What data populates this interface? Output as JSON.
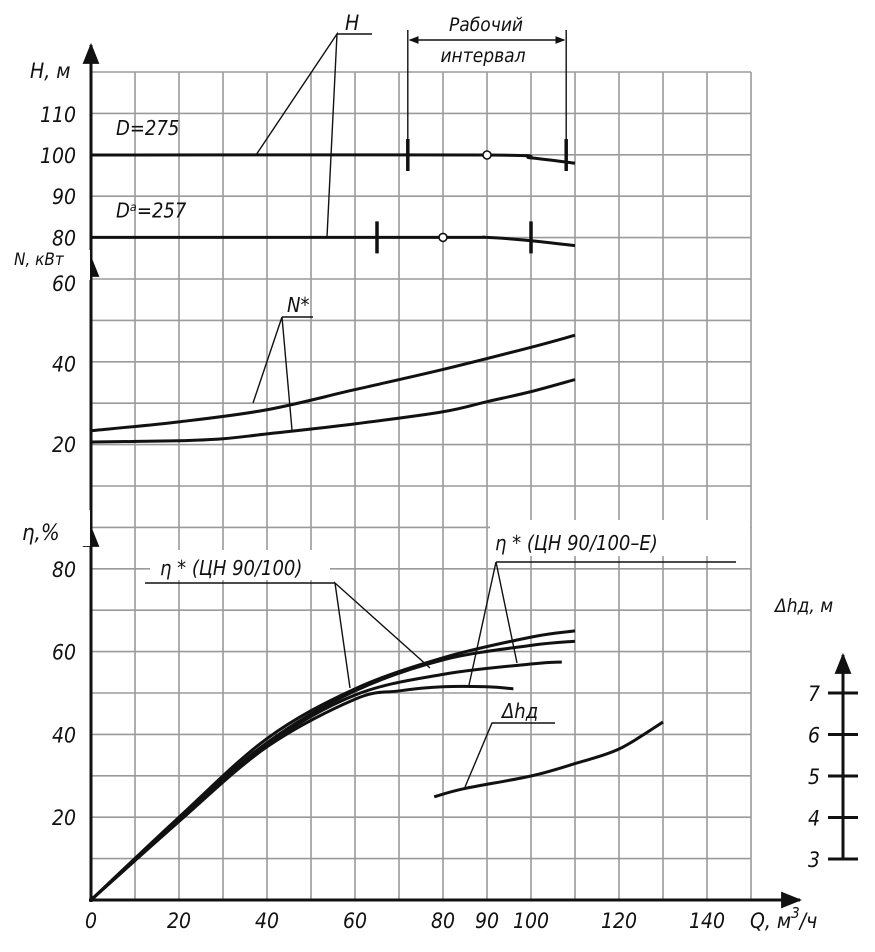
{
  "chart_data": {
    "type": "line",
    "x_axis": {
      "label": "Q, м³/ч",
      "label_main": "Q, м",
      "label_sup": "3",
      "label_tail": "/ч",
      "ticks": [
        0,
        20,
        40,
        60,
        80,
        90,
        100,
        120,
        140
      ],
      "range": [
        0,
        150
      ],
      "grid_step": 10
    },
    "grid": true,
    "panels": [
      {
        "name": "head",
        "ylabel": "H, м",
        "ticks": [
          80,
          90,
          100,
          110
        ],
        "series": [
          {
            "name": "D=275",
            "label": "D=275",
            "x": [
              0,
              90,
              100,
              110
            ],
            "y": [
              100,
              100,
              99.3,
              98
            ],
            "operating_point": 90,
            "working_interval": [
              72,
              108
            ]
          },
          {
            "name": "Dᵃ=257",
            "label": "Dᵃ=257",
            "x": [
              0,
              80,
              90,
              100,
              110
            ],
            "y": [
              80,
              80,
              80,
              79.2,
              78
            ],
            "operating_point": 80,
            "working_interval": [
              65,
              100
            ]
          }
        ],
        "leader_label": "H",
        "working_interval_label": [
          "Рабочий",
          "интервал"
        ]
      },
      {
        "name": "power",
        "ylabel": "N, кВт",
        "ticks": [
          20,
          40,
          60
        ],
        "leader_label": "N*",
        "series": [
          {
            "x": [
              0,
              20,
              40,
              60,
              80,
              100,
              110
            ],
            "y": [
              23.3,
              25.5,
              28.5,
              33.5,
              38.5,
              44,
              47
            ]
          },
          {
            "x": [
              0,
              20,
              30,
              40,
              60,
              80,
              90,
              100,
              110
            ],
            "y": [
              20.5,
              20.8,
              21.3,
              22.5,
              25,
              28,
              30.5,
              33,
              36
            ]
          }
        ]
      },
      {
        "name": "efficiency",
        "ylabel": "η,%",
        "ticks": [
          20,
          40,
          60,
          80
        ],
        "labels": [
          "η * (ЦН 90/100)",
          "η * (ЦН 90/100–Е)"
        ],
        "series": [
          {
            "x": [
              0,
              20,
              40,
              60,
              80,
              100,
              110
            ],
            "y": [
              0,
              20,
              39,
              51,
              58.5,
              63.5,
              65
            ]
          },
          {
            "x": [
              0,
              20,
              40,
              60,
              80,
              100,
              110
            ],
            "y": [
              0,
              19.5,
              38,
              50.5,
              58,
              61.5,
              62.5
            ]
          },
          {
            "x": [
              0,
              20,
              40,
              60,
              80,
              100,
              107
            ],
            "y": [
              0,
              19,
              37.5,
              49.5,
              54.5,
              57,
              57.5
            ]
          },
          {
            "x": [
              0,
              20,
              40,
              60,
              70,
              80,
              90,
              96
            ],
            "y": [
              0,
              19,
              37,
              48.5,
              50.5,
              51.5,
              51.5,
              51
            ]
          }
        ]
      },
      {
        "name": "npsh",
        "ylabel": "Δhд, м",
        "ticks": [
          3,
          4,
          5,
          6,
          7
        ],
        "leader_label": "Δhд",
        "series": [
          {
            "x": [
              78,
              85,
              100,
              110,
              120,
              130
            ],
            "y": [
              4.5,
              4.7,
              5.0,
              5.3,
              5.65,
              6.3
            ]
          }
        ]
      }
    ]
  }
}
